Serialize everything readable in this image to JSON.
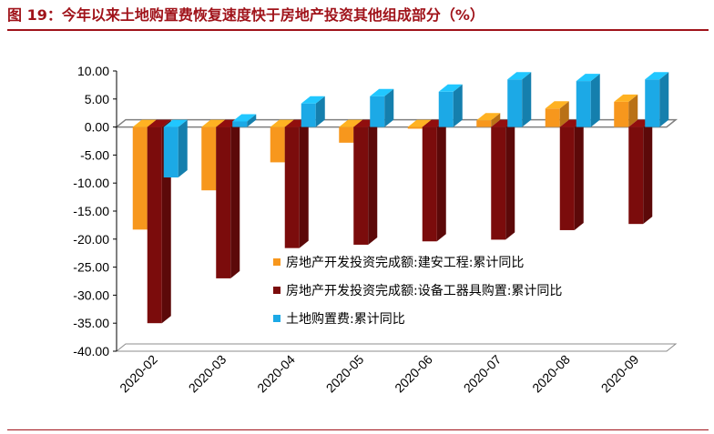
{
  "title": "图 19：今年以来土地购置费恢复速度快于房地产投资其他组成部分（%）",
  "chart_data": {
    "type": "bar",
    "title": "图 19：今年以来土地购置费恢复速度快于房地产投资其他组成部分（%）",
    "xlabel": "",
    "ylabel": "",
    "ylim": [
      -40,
      10
    ],
    "yticks": [
      "10.00",
      "5.00",
      "0.00",
      "-5.00",
      "-10.00",
      "-15.00",
      "-20.00",
      "-25.00",
      "-30.00",
      "-35.00",
      "-40.00"
    ],
    "categories": [
      "2020-02",
      "2020-03",
      "2020-04",
      "2020-05",
      "2020-06",
      "2020-07",
      "2020-08",
      "2020-09"
    ],
    "legend_position": "lower-right inside plot",
    "grid": false,
    "series": [
      {
        "name": "房地产开发投资完成额:建安工程:累计同比",
        "color": "#f7971d",
        "values": [
          -18.3,
          -11.3,
          -6.3,
          -2.8,
          -0.3,
          1.2,
          3.3,
          4.5
        ]
      },
      {
        "name": "房地产开发投资完成额:设备工器具购置:累计同比",
        "color": "#7b0c0c",
        "values": [
          -35.0,
          -27.0,
          -21.6,
          -21.0,
          -20.4,
          -20.1,
          -18.4,
          -17.3
        ]
      },
      {
        "name": "土地购置费:累计同比",
        "color": "#1ca9e6",
        "values": [
          -9.0,
          1.0,
          4.2,
          5.5,
          6.3,
          8.5,
          8.2,
          8.5
        ]
      }
    ]
  }
}
